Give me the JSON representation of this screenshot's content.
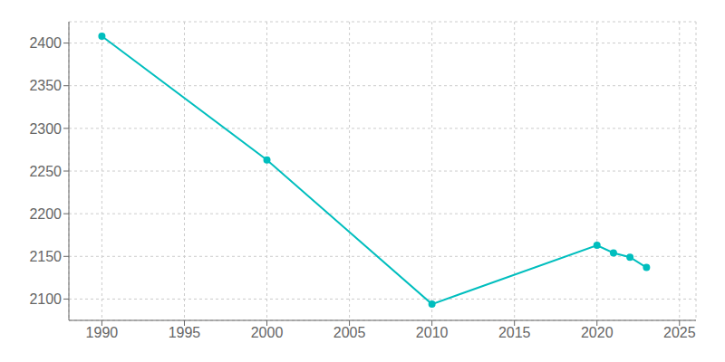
{
  "chart_data": {
    "type": "line",
    "x": [
      1990,
      2000,
      2010,
      2020,
      2021,
      2022,
      2023
    ],
    "values": [
      2408,
      2263,
      2094,
      2163,
      2154,
      2149,
      2137
    ],
    "color": "#00BEBE",
    "marker": "circle",
    "xlim": [
      1988,
      2026
    ],
    "ylim": [
      2075,
      2425
    ],
    "xticks": [
      1990,
      1995,
      2000,
      2005,
      2010,
      2015,
      2020,
      2025
    ],
    "yticks": [
      2100,
      2150,
      2200,
      2250,
      2300,
      2350,
      2400
    ],
    "grid": true
  }
}
